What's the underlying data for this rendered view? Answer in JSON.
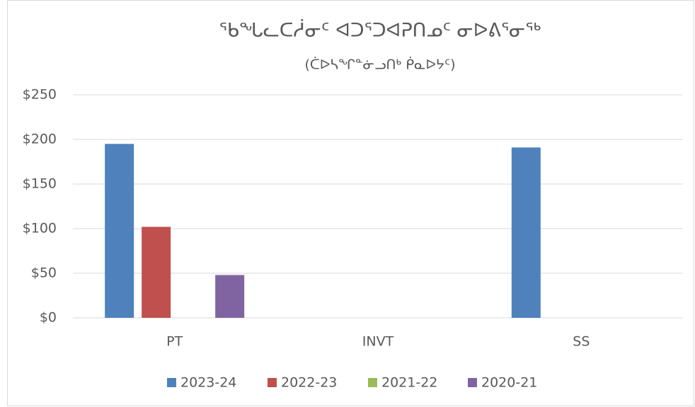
{
  "chart_data": {
    "type": "bar",
    "title": "ᖃᖓᓚᑕᓲᓂᑦ ᐊᑐᕐᑐᐊᕈᑎᓄᑦ ᓂᐅᕕᕐᓂᖅ",
    "subtitle": "(ᑖᐅᓴᖏᓐᓃᓗᑎᒃ ᑮᓇᐅᔭᑦ)",
    "categories": [
      "PT",
      "INVT",
      "SS"
    ],
    "series": [
      {
        "name": "2023-24",
        "color": "#4f81bd",
        "values": [
          195,
          0,
          191
        ]
      },
      {
        "name": "2022-23",
        "color": "#c0504d",
        "values": [
          102,
          0,
          0
        ]
      },
      {
        "name": "2021-22",
        "color": "#9bbb59",
        "values": [
          0,
          0,
          0
        ]
      },
      {
        "name": "2020-21",
        "color": "#8064a2",
        "values": [
          48,
          0,
          0
        ]
      }
    ],
    "ylim": [
      0,
      250
    ],
    "yticks": [
      {
        "value": 0,
        "label": "$0"
      },
      {
        "value": 50,
        "label": "$50"
      },
      {
        "value": 100,
        "label": "$100"
      },
      {
        "value": 150,
        "label": "$150"
      },
      {
        "value": 200,
        "label": "$200"
      },
      {
        "value": 250,
        "label": "$250"
      }
    ],
    "grid": true,
    "legend": "bottom"
  }
}
